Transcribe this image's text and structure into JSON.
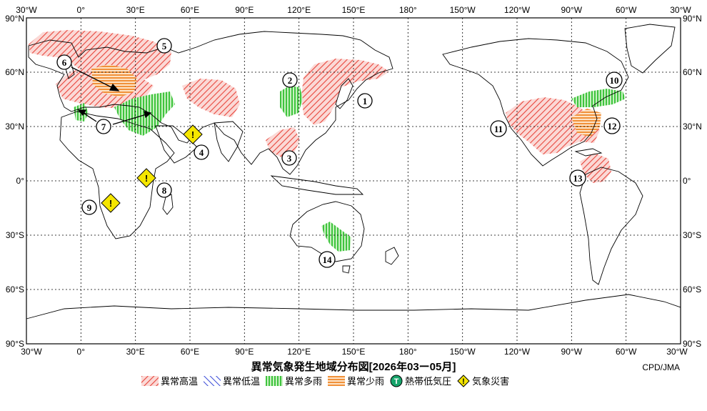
{
  "title": "異常気象発生地域分布図[2026年03ー05月]",
  "credit": "CPD/JMA",
  "axes": {
    "top_longitudes": [
      "30°W",
      "0°",
      "30°E",
      "60°E",
      "90°E",
      "120°E",
      "150°E",
      "180°",
      "150°W",
      "120°W",
      "90°W",
      "60°W",
      "30°W"
    ],
    "bottom_longitudes": [
      "30°W",
      "0°",
      "30°E",
      "60°E",
      "90°E",
      "120°E",
      "150°E",
      "180°",
      "150°W",
      "120°W",
      "90°W",
      "60°W",
      "30°W"
    ],
    "left_latitudes": [
      "90°N",
      "60°N",
      "30°N",
      "0°",
      "30°S",
      "60°S",
      "90°S"
    ],
    "right_latitudes": [
      "90°N",
      "60°N",
      "30°N",
      "0°",
      "30°S",
      "60°S",
      "90°S"
    ]
  },
  "legend": [
    {
      "label": "異常高温",
      "color": "#e8463c",
      "pattern": "hatch-warm"
    },
    {
      "label": "異常低温",
      "color": "#3a4bd8",
      "pattern": "hatch-cold"
    },
    {
      "label": "異常多雨",
      "color": "#2fbf2f",
      "pattern": "vertical-wet"
    },
    {
      "label": "異常少雨",
      "color": "#f0882a",
      "pattern": "horizontal-dry"
    },
    {
      "label": "熱帯低気圧",
      "color": "#17a46b",
      "symbol": "T"
    },
    {
      "label": "気象災害",
      "color": "#f5e600",
      "symbol": "!"
    }
  ],
  "region_labels": [
    "1",
    "2",
    "3",
    "4",
    "5",
    "6",
    "7",
    "8",
    "9",
    "10",
    "11",
    "12",
    "13",
    "14"
  ]
}
